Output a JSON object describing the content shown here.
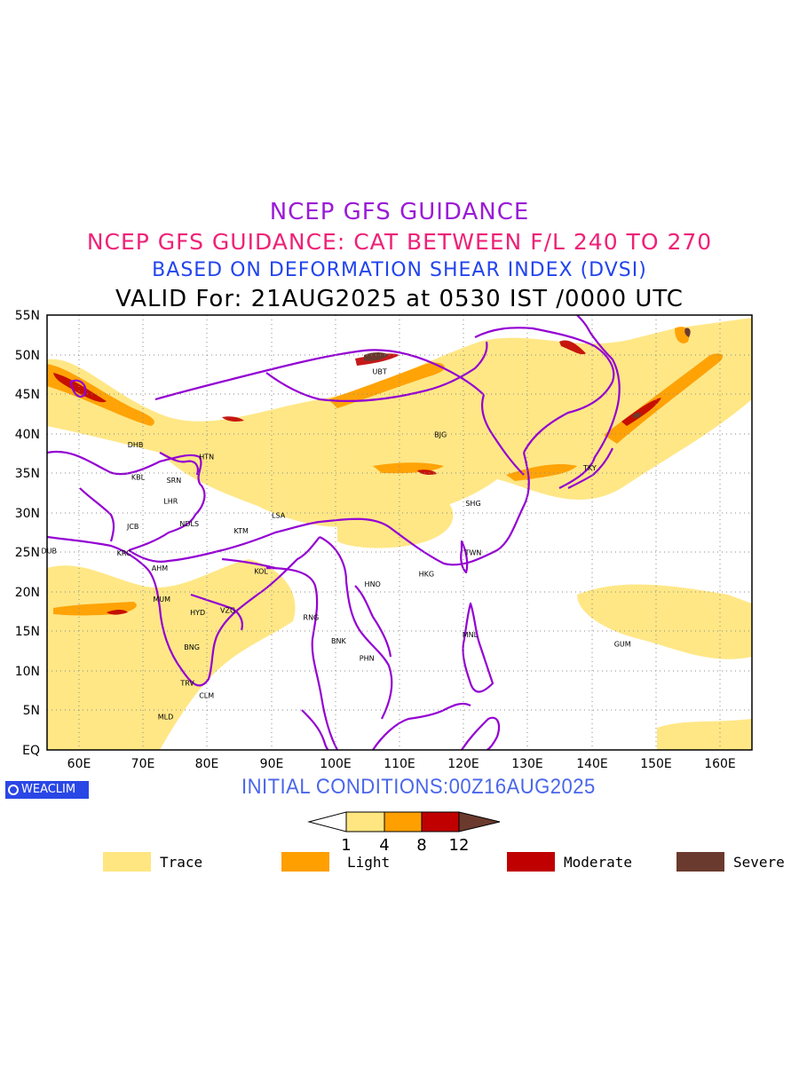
{
  "titles": {
    "line1": "NCEP GFS GUIDANCE",
    "line2": "NCEP GFS GUIDANCE: CAT BETWEEN F/L 240 TO 270",
    "line3": "BASED ON DEFORMATION SHEAR INDEX (DVSI)",
    "line4": "VALID For: 21AUG2025 at 0530 IST /0000 UTC"
  },
  "map": {
    "lon_ticks": [
      "60E",
      "70E",
      "80E",
      "90E",
      "100E",
      "110E",
      "120E",
      "130E",
      "140E",
      "150E",
      "160E"
    ],
    "lat_ticks": [
      "EQ",
      "5N",
      "10N",
      "15N",
      "20N",
      "25N",
      "30N",
      "35N",
      "40N",
      "45N",
      "50N",
      "55N"
    ],
    "extent": {
      "lon_min": 55,
      "lon_max": 165,
      "lat_min": 0,
      "lat_max": 55
    },
    "stations": [
      {
        "code": "UBT",
        "lon": 106.9,
        "lat": 47.9
      },
      {
        "code": "BJG",
        "lon": 116.4,
        "lat": 39.9
      },
      {
        "code": "HTN",
        "lon": 79.9,
        "lat": 37.1
      },
      {
        "code": "DHB",
        "lon": 68.8,
        "lat": 38.6
      },
      {
        "code": "KBL",
        "lon": 69.2,
        "lat": 34.5
      },
      {
        "code": "SRN",
        "lon": 74.8,
        "lat": 34.1
      },
      {
        "code": "LHR",
        "lon": 74.3,
        "lat": 31.5
      },
      {
        "code": "JCB",
        "lon": 68.4,
        "lat": 28.3
      },
      {
        "code": "NDLS",
        "lon": 77.2,
        "lat": 28.6
      },
      {
        "code": "KTM",
        "lon": 85.3,
        "lat": 27.7
      },
      {
        "code": "LSA",
        "lon": 91.1,
        "lat": 29.7
      },
      {
        "code": "SHG",
        "lon": 121.5,
        "lat": 31.2
      },
      {
        "code": "TKY",
        "lon": 139.7,
        "lat": 35.7
      },
      {
        "code": "DUB",
        "lon": 55.3,
        "lat": 25.2
      },
      {
        "code": "KRC",
        "lon": 67.0,
        "lat": 24.9
      },
      {
        "code": "AHM",
        "lon": 72.6,
        "lat": 23.0
      },
      {
        "code": "KOL",
        "lon": 88.4,
        "lat": 22.6
      },
      {
        "code": "TWN",
        "lon": 121.5,
        "lat": 25.0
      },
      {
        "code": "HKG",
        "lon": 114.2,
        "lat": 22.3
      },
      {
        "code": "HNO",
        "lon": 105.8,
        "lat": 21.0
      },
      {
        "code": "MUM",
        "lon": 72.9,
        "lat": 19.1
      },
      {
        "code": "HYD",
        "lon": 78.5,
        "lat": 17.4
      },
      {
        "code": "VZG",
        "lon": 83.2,
        "lat": 17.7
      },
      {
        "code": "RNG",
        "lon": 96.2,
        "lat": 16.8
      },
      {
        "code": "MNL",
        "lon": 121.0,
        "lat": 14.6
      },
      {
        "code": "BNK",
        "lon": 100.5,
        "lat": 13.8
      },
      {
        "code": "GUM",
        "lon": 144.8,
        "lat": 13.4
      },
      {
        "code": "BNG",
        "lon": 77.6,
        "lat": 13.0
      },
      {
        "code": "PHN",
        "lon": 104.9,
        "lat": 11.6
      },
      {
        "code": "TRV",
        "lon": 76.9,
        "lat": 8.5
      },
      {
        "code": "CLM",
        "lon": 79.9,
        "lat": 6.9
      },
      {
        "code": "MLD",
        "lon": 73.5,
        "lat": 4.2
      }
    ],
    "colors": {
      "trace": "#ffe680",
      "light": "#ff9f00",
      "moderate": "#c00000",
      "severe": "#6b3a2e",
      "boundary": "#9400d3"
    }
  },
  "footer": {
    "logo_text": "WEACLIM",
    "initial_conditions": "INITIAL CONDITIONS:00Z16AUG2025"
  },
  "colorbar": {
    "ticks": [
      "1",
      "4",
      "8",
      "12"
    ]
  },
  "legend": [
    {
      "label": "Trace",
      "color": "#ffe680"
    },
    {
      "label": "Light",
      "color": "#ff9f00"
    },
    {
      "label": "Moderate",
      "color": "#c00000"
    },
    {
      "label": "Severe",
      "color": "#6b3a2e"
    }
  ]
}
